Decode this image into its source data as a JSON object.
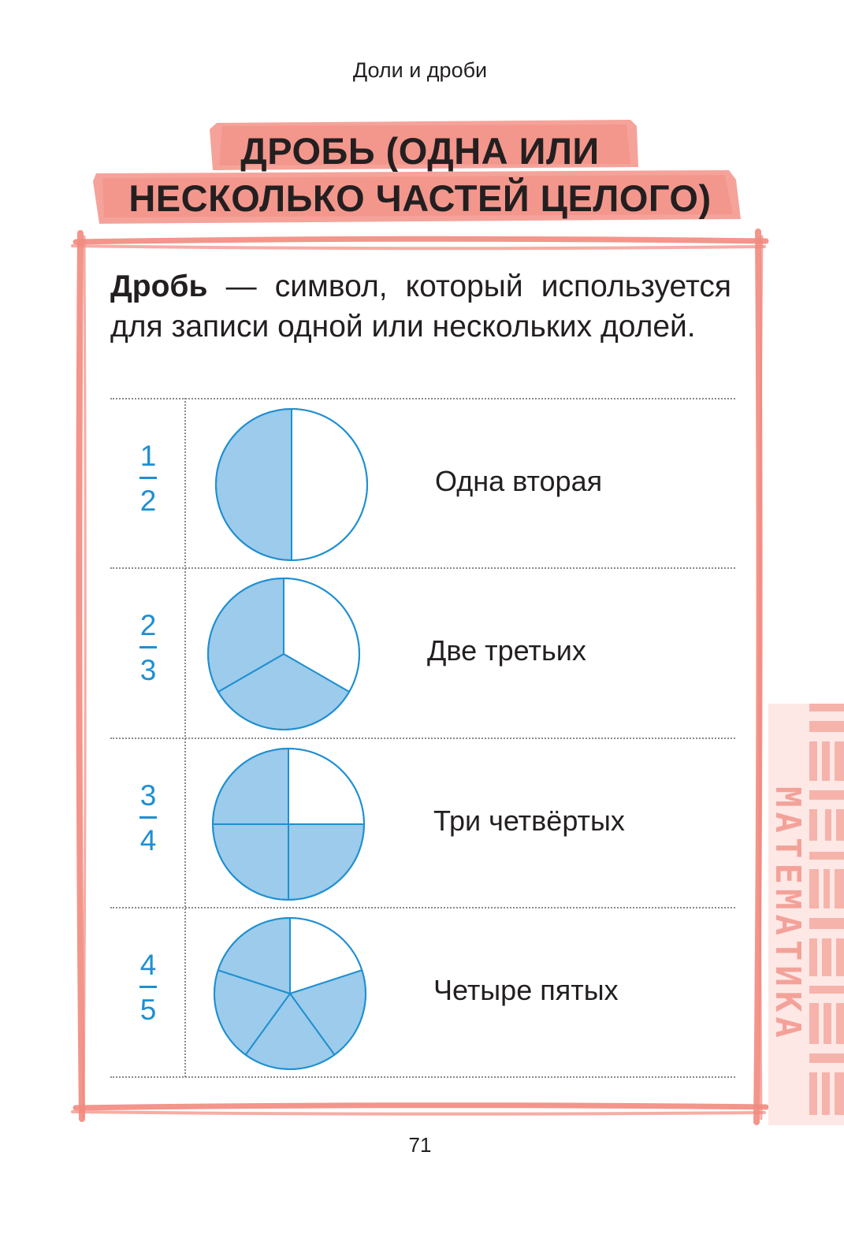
{
  "running_head": "Доли и дроби",
  "title": {
    "line1": "ДРОБЬ (ОДНА ИЛИ",
    "line2": "НЕСКОЛЬКО ЧАСТЕЙ ЦЕЛОГО)"
  },
  "definition": {
    "term": "Дробь",
    "text": " — символ, который используется для записи одной или нескольких долей."
  },
  "rows": [
    {
      "numerator": "1",
      "denominator": "2",
      "parts": 2,
      "shaded": 1,
      "label": "Одна вторая"
    },
    {
      "numerator": "2",
      "denominator": "3",
      "parts": 3,
      "shaded": 2,
      "label": "Две третьих"
    },
    {
      "numerator": "3",
      "denominator": "4",
      "parts": 4,
      "shaded": 3,
      "label": "Три четвёртых"
    },
    {
      "numerator": "4",
      "denominator": "5",
      "parts": 5,
      "shaded": 4,
      "label": "Четыре пятых"
    }
  ],
  "page_number": "71",
  "side_tab": "МАТЕМАТИКА",
  "colors": {
    "accent_red": "#f2897e",
    "fraction_blue": "#1f8fd1",
    "pie_fill": "#9ccbeb",
    "pie_stroke": "#1f8fd1",
    "text": "#231f20"
  }
}
